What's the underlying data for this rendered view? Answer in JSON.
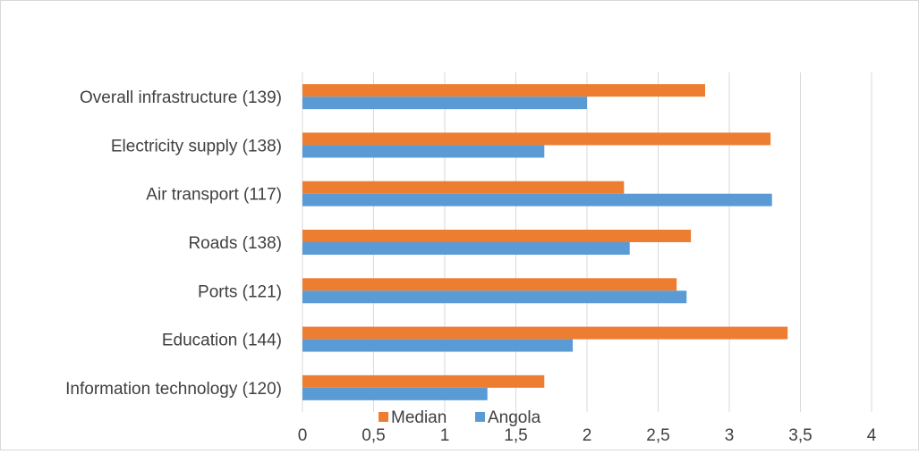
{
  "chart_data": {
    "type": "bar",
    "orientation": "horizontal",
    "categories": [
      "Overall infrastructure (139)",
      "Electricity supply (138)",
      "Air transport (117)",
      "Roads (138)",
      "Ports (121)",
      "Education (144)",
      "Information technology (120)"
    ],
    "series": [
      {
        "name": "Median",
        "color": "#ED7D31",
        "values": [
          2.83,
          3.29,
          2.26,
          2.73,
          2.63,
          3.41,
          1.7
        ]
      },
      {
        "name": "Angola",
        "color": "#5B9BD5",
        "values": [
          2.0,
          1.7,
          3.3,
          2.3,
          2.7,
          1.9,
          1.3
        ]
      }
    ],
    "xlim": [
      0,
      4
    ],
    "x_ticks": [
      "0",
      "0,5",
      "1",
      "1,5",
      "2",
      "2,5",
      "3",
      "3,5",
      "4"
    ],
    "x_tick_values": [
      0,
      0.5,
      1,
      1.5,
      2,
      2.5,
      3,
      3.5,
      4
    ],
    "grid": "vertical",
    "legend_position": "bottom"
  }
}
